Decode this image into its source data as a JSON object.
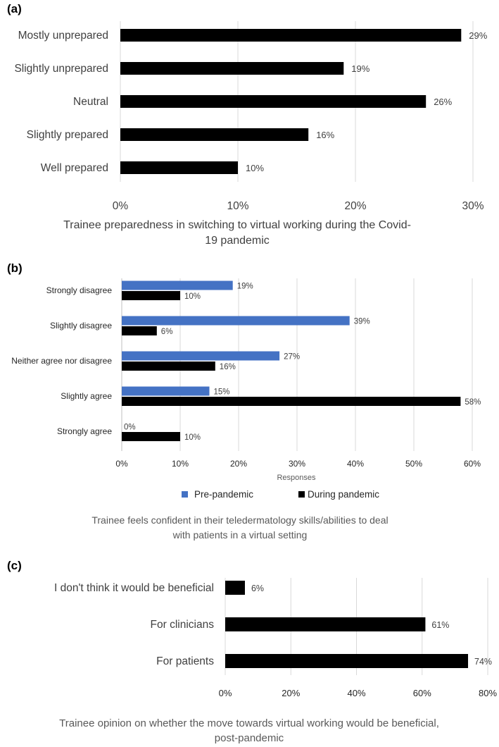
{
  "chart_data": [
    {
      "panel": "(a)",
      "type": "bar",
      "orientation": "horizontal",
      "categories": [
        "Mostly unprepared",
        "Slightly unprepared",
        "Neutral",
        "Slightly prepared",
        "Well prepared"
      ],
      "values": [
        29,
        19,
        26,
        16,
        10
      ],
      "value_labels": [
        "29%",
        "19%",
        "26%",
        "16%",
        "10%"
      ],
      "xlim": [
        0,
        30
      ],
      "xticks": [
        0,
        10,
        20,
        30
      ],
      "xtick_labels": [
        "0%",
        "10%",
        "20%",
        "30%"
      ],
      "caption": [
        "Trainee preparedness in switching to virtual working during the Covid-",
        "19 pandemic"
      ],
      "color": "#000000"
    },
    {
      "panel": "(b)",
      "type": "bar",
      "orientation": "horizontal",
      "categories": [
        "Strongly disagree",
        "Slightly disagree",
        "Neither agree nor disagree",
        "Slightly agree",
        "Strongly agree"
      ],
      "series": [
        {
          "name": "Pre-pandemic",
          "color": "#4472c4",
          "values": [
            19,
            39,
            27,
            15,
            0
          ],
          "value_labels": [
            "19%",
            "39%",
            "27%",
            "15%",
            "0%"
          ]
        },
        {
          "name": "During pandemic",
          "color": "#000000",
          "values": [
            10,
            6,
            16,
            58,
            10
          ],
          "value_labels": [
            "10%",
            "6%",
            "16%",
            "58%",
            "10%"
          ]
        }
      ],
      "xlim": [
        0,
        60
      ],
      "xticks": [
        0,
        10,
        20,
        30,
        40,
        50,
        60
      ],
      "xtick_labels": [
        "0%",
        "10%",
        "20%",
        "30%",
        "40%",
        "50%",
        "60%"
      ],
      "xlabel": "Responses",
      "legend": "bottom",
      "caption": [
        "Trainee feels confident in their teledermatology skills/abilities to deal",
        "with patients in a virtual setting"
      ]
    },
    {
      "panel": "(c)",
      "type": "bar",
      "orientation": "horizontal",
      "categories": [
        "I don't think it would be beneficial",
        "For clinicians",
        "For patients"
      ],
      "values": [
        6,
        61,
        74
      ],
      "value_labels": [
        "6%",
        "61%",
        "74%"
      ],
      "xlim": [
        0,
        80
      ],
      "xticks": [
        0,
        20,
        40,
        60,
        80
      ],
      "xtick_labels": [
        "0%",
        "20%",
        "40%",
        "60%",
        "80%"
      ],
      "caption": [
        "Trainee opinion on whether the move towards virtual working would be beneficial,",
        "post-pandemic"
      ],
      "color": "#000000"
    }
  ]
}
